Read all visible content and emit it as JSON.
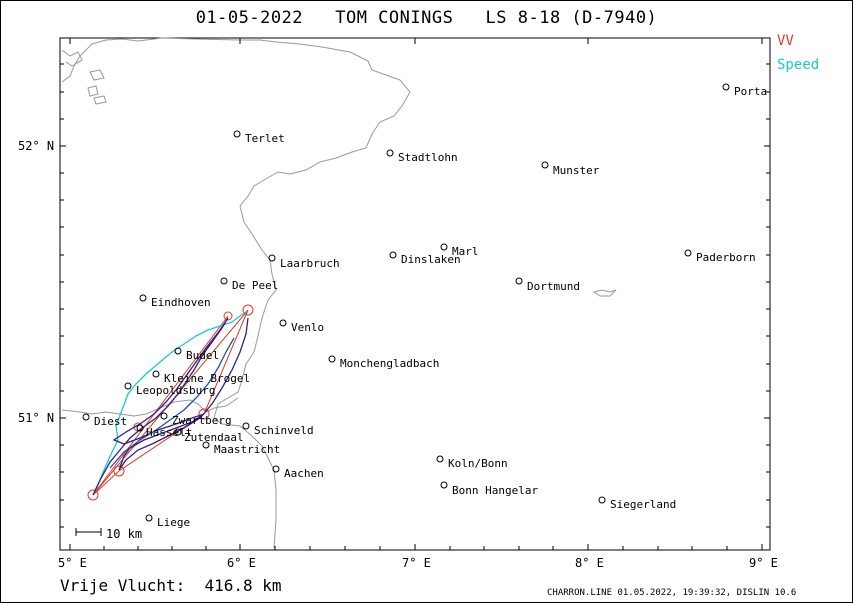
{
  "title": "01-05-2022   TOM CONINGS   LS 8-18 (D-7940)",
  "legend": {
    "vv": "VV",
    "speed": "Speed"
  },
  "colors": {
    "vv": "#e03a2a",
    "speed": "#18c8d8",
    "track": "#3a1f7a",
    "border": "#999999"
  },
  "footer": {
    "distance": "Vrije Vlucht:  416.8 km",
    "credit": "CHARRON.LINE 01.05.2022, 19:39:32, DISLIN 10.6"
  },
  "scale_bar": "10 km",
  "axes": {
    "lat_labels": [
      "52° N",
      "51° N"
    ],
    "lon_labels": [
      "5° E",
      "6° E",
      "7° E",
      "8° E",
      "9° E"
    ]
  },
  "cities": [
    {
      "name": "Porta"
    },
    {
      "name": "Terlet"
    },
    {
      "name": "Stadtlohn"
    },
    {
      "name": "Munster"
    },
    {
      "name": "Marl"
    },
    {
      "name": "Dinslaken"
    },
    {
      "name": "Paderborn"
    },
    {
      "name": "Laarbruch"
    },
    {
      "name": "De Peel"
    },
    {
      "name": "Dortmund"
    },
    {
      "name": "Eindhoven"
    },
    {
      "name": "Venlo"
    },
    {
      "name": "Budel"
    },
    {
      "name": "Monchengladbach"
    },
    {
      "name": "Kleine Brogel"
    },
    {
      "name": "Leopoldsburg"
    },
    {
      "name": "Diest"
    },
    {
      "name": "Zwartberg"
    },
    {
      "name": "Hasselt"
    },
    {
      "name": "Schinveld"
    },
    {
      "name": "Zutendaal"
    },
    {
      "name": "Maastricht"
    },
    {
      "name": "Koln/Bonn"
    },
    {
      "name": "Aachen"
    },
    {
      "name": "Bonn Hangelar"
    },
    {
      "name": "Siegerland"
    },
    {
      "name": "Liege"
    }
  ]
}
